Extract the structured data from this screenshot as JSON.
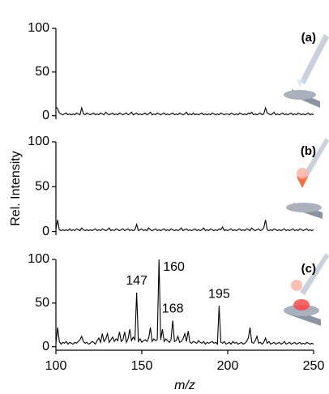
{
  "chart_data": [
    {
      "type": "line",
      "panel": "(a)",
      "color": "#000000",
      "x": [
        100,
        101,
        102,
        103,
        104,
        105,
        106,
        107,
        108,
        109,
        110,
        111,
        112,
        113,
        114,
        115,
        116,
        117,
        118,
        119,
        120,
        121,
        122,
        123,
        124,
        125,
        126,
        127,
        128,
        129,
        130,
        131,
        132,
        133,
        134,
        135,
        136,
        137,
        138,
        139,
        140,
        141,
        142,
        143,
        144,
        145,
        146,
        147,
        148,
        149,
        150,
        151,
        152,
        153,
        154,
        155,
        156,
        157,
        158,
        159,
        160,
        161,
        162,
        163,
        164,
        165,
        166,
        167,
        168,
        169,
        170,
        171,
        172,
        173,
        174,
        175,
        176,
        177,
        178,
        179,
        180,
        181,
        182,
        183,
        184,
        185,
        186,
        187,
        188,
        189,
        190,
        191,
        192,
        193,
        194,
        195,
        196,
        197,
        198,
        199,
        200,
        201,
        202,
        203,
        204,
        205,
        206,
        207,
        208,
        209,
        210,
        211,
        212,
        213,
        214,
        215,
        216,
        217,
        218,
        219,
        220,
        221,
        222,
        223,
        224,
        225,
        226,
        227,
        228,
        229,
        230,
        231,
        232,
        233,
        234,
        235,
        236,
        237,
        238,
        239,
        240,
        241,
        242,
        243,
        244,
        245,
        246,
        247,
        248,
        249,
        250
      ],
      "values": [
        10,
        8,
        3,
        2,
        1,
        2,
        3,
        1,
        2,
        1,
        2,
        1,
        3,
        2,
        1,
        9,
        2,
        1,
        3,
        2,
        1,
        2,
        3,
        1,
        2,
        1,
        3,
        2,
        1,
        4,
        2,
        1,
        2,
        3,
        1,
        2,
        1,
        3,
        2,
        1,
        2,
        3,
        1,
        2,
        4,
        1,
        2,
        3,
        1,
        2,
        1,
        2,
        3,
        1,
        2,
        4,
        1,
        2,
        1,
        3,
        2,
        1,
        2,
        3,
        1,
        2,
        1,
        2,
        3,
        1,
        2,
        1,
        3,
        2,
        1,
        2,
        4,
        1,
        2,
        1,
        3,
        1,
        2,
        1,
        2,
        3,
        1,
        2,
        1,
        2,
        1,
        3,
        2,
        1,
        2,
        1,
        3,
        2,
        1,
        2,
        2,
        1,
        3,
        2,
        1,
        2,
        1,
        3,
        2,
        1,
        2,
        1,
        3,
        2,
        4,
        1,
        2,
        1,
        2,
        3,
        1,
        2,
        9,
        3,
        2,
        1,
        2,
        4,
        1,
        2,
        1,
        2,
        3,
        1,
        2,
        1,
        2,
        3,
        1,
        2,
        1,
        3,
        2,
        1,
        2,
        1,
        2,
        3,
        1,
        2,
        1
      ],
      "xlim": [
        100,
        250
      ],
      "ylim": [
        -4,
        100
      ],
      "yticks": [
        0,
        50,
        100
      ]
    },
    {
      "type": "line",
      "panel": "(b)",
      "color": "#000000",
      "ylabel": "Rel. Intensity",
      "x": [
        100,
        101,
        102,
        103,
        104,
        105,
        106,
        107,
        108,
        109,
        110,
        111,
        112,
        113,
        114,
        115,
        116,
        117,
        118,
        119,
        120,
        121,
        122,
        123,
        124,
        125,
        126,
        127,
        128,
        129,
        130,
        131,
        132,
        133,
        134,
        135,
        136,
        137,
        138,
        139,
        140,
        141,
        142,
        143,
        144,
        145,
        146,
        147,
        148,
        149,
        150,
        151,
        152,
        153,
        154,
        155,
        156,
        157,
        158,
        159,
        160,
        161,
        162,
        163,
        164,
        165,
        166,
        167,
        168,
        169,
        170,
        171,
        172,
        173,
        174,
        175,
        176,
        177,
        178,
        179,
        180,
        181,
        182,
        183,
        184,
        185,
        186,
        187,
        188,
        189,
        190,
        191,
        192,
        193,
        194,
        195,
        196,
        197,
        198,
        199,
        200,
        201,
        202,
        203,
        204,
        205,
        206,
        207,
        208,
        209,
        210,
        211,
        212,
        213,
        214,
        215,
        216,
        217,
        218,
        219,
        220,
        221,
        222,
        223,
        224,
        225,
        226,
        227,
        228,
        229,
        230,
        231,
        232,
        233,
        234,
        235,
        236,
        237,
        238,
        239,
        240,
        241,
        242,
        243,
        244,
        245,
        246,
        247,
        248,
        249,
        250
      ],
      "values": [
        3,
        13,
        2,
        1,
        2,
        1,
        2,
        1,
        3,
        1,
        2,
        1,
        3,
        2,
        1,
        4,
        2,
        1,
        2,
        1,
        2,
        1,
        2,
        3,
        1,
        2,
        1,
        3,
        2,
        1,
        2,
        4,
        1,
        2,
        1,
        3,
        2,
        1,
        2,
        3,
        1,
        2,
        3,
        1,
        2,
        1,
        2,
        8,
        1,
        2,
        3,
        1,
        2,
        1,
        4,
        2,
        1,
        2,
        3,
        1,
        2,
        1,
        2,
        3,
        1,
        2,
        1,
        3,
        2,
        1,
        2,
        1,
        2,
        4,
        1,
        2,
        3,
        1,
        2,
        1,
        2,
        3,
        1,
        2,
        1,
        2,
        4,
        1,
        2,
        1,
        3,
        2,
        1,
        2,
        1,
        3,
        2,
        5,
        1,
        2,
        1,
        2,
        3,
        1,
        2,
        1,
        2,
        3,
        1,
        2,
        1,
        3,
        2,
        1,
        4,
        2,
        1,
        2,
        3,
        1,
        2,
        4,
        13,
        2,
        1,
        2,
        1,
        3,
        2,
        1,
        2,
        1,
        2,
        3,
        1,
        2,
        1,
        2,
        3,
        1,
        2,
        1,
        3,
        2,
        1,
        2,
        3,
        1,
        2,
        1,
        2
      ],
      "xlim": [
        100,
        250
      ],
      "ylim": [
        -4,
        100
      ],
      "yticks": [
        0,
        50,
        100
      ]
    },
    {
      "type": "line",
      "panel": "(c)",
      "color": "#000000",
      "xlabel": "m/z",
      "x": [
        100,
        101,
        102,
        103,
        104,
        105,
        106,
        107,
        108,
        109,
        110,
        111,
        112,
        113,
        114,
        115,
        116,
        117,
        118,
        119,
        120,
        121,
        122,
        123,
        124,
        125,
        126,
        127,
        128,
        129,
        130,
        131,
        132,
        133,
        134,
        135,
        136,
        137,
        138,
        139,
        140,
        141,
        142,
        143,
        144,
        145,
        146,
        147,
        148,
        149,
        150,
        151,
        152,
        153,
        154,
        155,
        156,
        157,
        158,
        159,
        160,
        161,
        162,
        163,
        164,
        165,
        166,
        167,
        168,
        169,
        170,
        171,
        172,
        173,
        174,
        175,
        176,
        177,
        178,
        179,
        180,
        181,
        182,
        183,
        184,
        185,
        186,
        187,
        188,
        189,
        190,
        191,
        192,
        193,
        194,
        195,
        196,
        197,
        198,
        199,
        200,
        201,
        202,
        203,
        204,
        205,
        206,
        207,
        208,
        209,
        210,
        211,
        212,
        213,
        214,
        215,
        216,
        217,
        218,
        219,
        220,
        221,
        222,
        223,
        224,
        225,
        226,
        227,
        228,
        229,
        230,
        231,
        232,
        233,
        234,
        235,
        236,
        237,
        238,
        239,
        240,
        241,
        242,
        243,
        244,
        245,
        246,
        247,
        248,
        249,
        250
      ],
      "values": [
        4,
        22,
        6,
        3,
        5,
        4,
        6,
        3,
        5,
        4,
        3,
        5,
        4,
        6,
        8,
        12,
        6,
        4,
        5,
        3,
        4,
        6,
        5,
        3,
        7,
        10,
        5,
        15,
        6,
        9,
        15,
        5,
        8,
        11,
        6,
        9,
        7,
        17,
        6,
        8,
        17,
        5,
        9,
        20,
        7,
        11,
        8,
        62,
        6,
        9,
        5,
        7,
        8,
        6,
        10,
        22,
        6,
        9,
        7,
        8,
        100,
        8,
        20,
        6,
        9,
        7,
        5,
        8,
        30,
        6,
        7,
        12,
        5,
        6,
        9,
        15,
        6,
        18,
        5,
        4,
        6,
        5,
        4,
        7,
        5,
        4,
        6,
        3,
        5,
        4,
        5,
        6,
        4,
        5,
        3,
        47,
        5,
        4,
        6,
        3,
        4,
        5,
        3,
        6,
        4,
        5,
        3,
        4,
        5,
        3,
        4,
        6,
        10,
        22,
        5,
        4,
        7,
        12,
        4,
        5,
        3,
        5,
        10,
        4,
        6,
        3,
        4,
        5,
        3,
        4,
        5,
        3,
        4,
        6,
        3,
        4,
        5,
        3,
        4,
        5,
        3,
        4,
        5,
        3,
        4,
        3,
        5,
        4,
        3,
        4,
        3
      ],
      "annotations": [
        {
          "text": "147",
          "x": 147
        },
        {
          "text": "160",
          "x": 160
        },
        {
          "text": "168",
          "x": 168
        },
        {
          "text": "195",
          "x": 195
        }
      ],
      "xlim": [
        100,
        250
      ],
      "xticks": [
        100,
        150,
        200,
        250
      ],
      "ylim": [
        -4,
        100
      ],
      "yticks": [
        0,
        50,
        100
      ]
    }
  ]
}
